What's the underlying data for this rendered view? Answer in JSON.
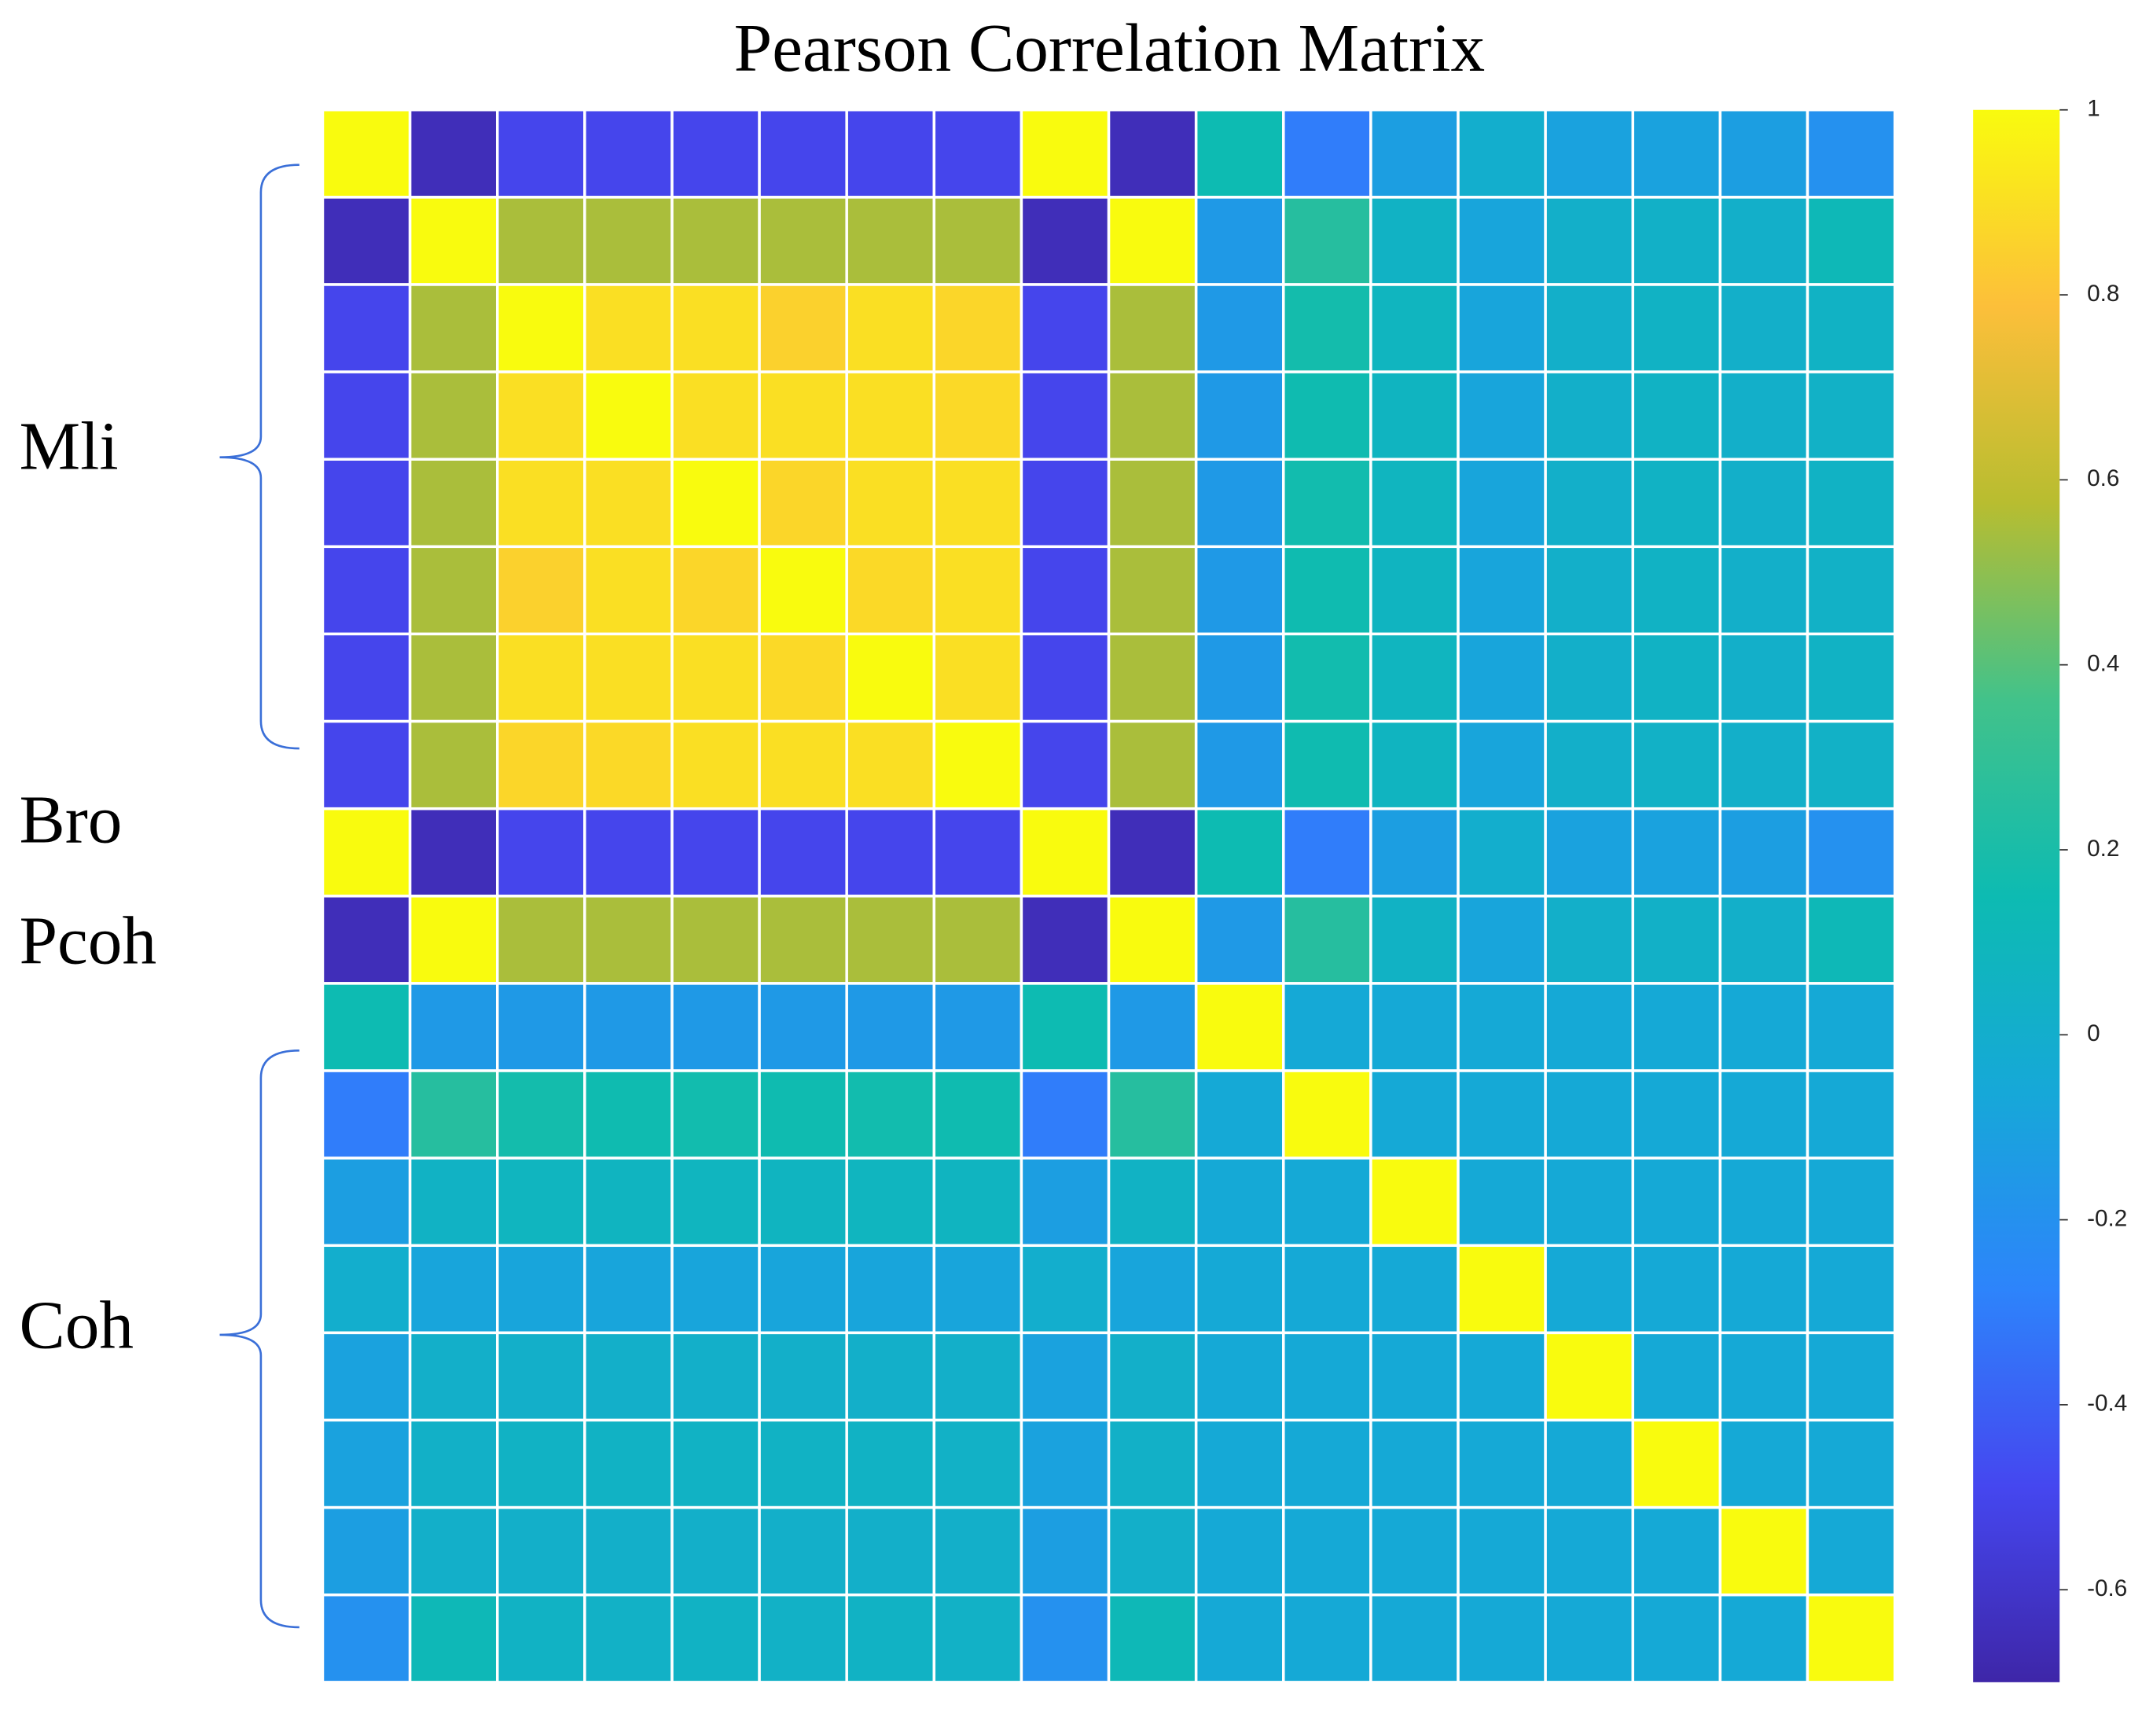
{
  "chart_data": {
    "type": "heatmap",
    "title": "Pearson Correlation Matrix",
    "row_group_labels": [
      "Mli",
      "Bro",
      "Pcoh",
      "Coh"
    ],
    "colormap": "parula",
    "colorbar": {
      "lim": [
        -0.7,
        1
      ],
      "ticks": [
        -0.6,
        -0.4,
        -0.2,
        0,
        0.2,
        0.4,
        0.6,
        0.8,
        1
      ]
    },
    "values": [
      [
        1,
        -0.65,
        -0.5,
        -0.5,
        -0.5,
        -0.5,
        -0.5,
        -0.5,
        1,
        -0.65,
        0.15,
        -0.3,
        -0.12,
        0,
        -0.1,
        -0.1,
        -0.12,
        -0.2
      ],
      [
        -0.65,
        1,
        0.55,
        0.55,
        0.55,
        0.55,
        0.55,
        0.55,
        -0.65,
        1,
        -0.15,
        0.25,
        0.05,
        -0.08,
        0.02,
        0.03,
        0.02,
        0.12
      ],
      [
        -0.5,
        0.55,
        1,
        0.9,
        0.9,
        0.85,
        0.9,
        0.87,
        -0.5,
        0.55,
        -0.15,
        0.18,
        0.08,
        -0.08,
        0.02,
        0.05,
        0.02,
        0.05
      ],
      [
        -0.5,
        0.55,
        0.9,
        1,
        0.9,
        0.9,
        0.9,
        0.88,
        -0.5,
        0.55,
        -0.15,
        0.16,
        0.07,
        -0.08,
        0.02,
        0.05,
        0.02,
        0.04
      ],
      [
        -0.5,
        0.55,
        0.9,
        0.9,
        1,
        0.87,
        0.9,
        0.9,
        -0.5,
        0.55,
        -0.15,
        0.17,
        0.08,
        -0.08,
        0.02,
        0.05,
        0.02,
        0.05
      ],
      [
        -0.5,
        0.55,
        0.85,
        0.9,
        0.87,
        1,
        0.88,
        0.9,
        -0.5,
        0.55,
        -0.15,
        0.16,
        0.07,
        -0.08,
        0.02,
        0.05,
        0.02,
        0.04
      ],
      [
        -0.5,
        0.55,
        0.9,
        0.9,
        0.9,
        0.88,
        1,
        0.9,
        -0.5,
        0.55,
        -0.15,
        0.17,
        0.08,
        -0.08,
        0.02,
        0.05,
        0.02,
        0.05
      ],
      [
        -0.5,
        0.55,
        0.87,
        0.88,
        0.9,
        0.9,
        0.9,
        1,
        -0.5,
        0.55,
        -0.15,
        0.16,
        0.07,
        -0.08,
        0.02,
        0.04,
        0.02,
        0.04
      ],
      [
        1,
        -0.65,
        -0.5,
        -0.5,
        -0.5,
        -0.5,
        -0.5,
        -0.5,
        1,
        -0.65,
        0.15,
        -0.3,
        -0.12,
        0,
        -0.1,
        -0.1,
        -0.12,
        -0.2
      ],
      [
        -0.65,
        1,
        0.55,
        0.55,
        0.55,
        0.55,
        0.55,
        0.55,
        -0.65,
        1,
        -0.15,
        0.25,
        0.05,
        -0.08,
        0.02,
        0.03,
        0.02,
        0.12
      ],
      [
        0.15,
        -0.15,
        -0.15,
        -0.15,
        -0.15,
        -0.15,
        -0.15,
        -0.15,
        0.15,
        -0.15,
        1,
        -0.05,
        -0.05,
        -0.05,
        -0.05,
        -0.05,
        -0.05,
        -0.05
      ],
      [
        -0.3,
        0.25,
        0.18,
        0.16,
        0.17,
        0.16,
        0.17,
        0.16,
        -0.3,
        0.25,
        -0.05,
        1,
        -0.05,
        -0.05,
        -0.05,
        -0.05,
        -0.05,
        -0.05
      ],
      [
        -0.12,
        0.05,
        0.08,
        0.07,
        0.08,
        0.07,
        0.08,
        0.07,
        -0.12,
        0.05,
        -0.05,
        -0.05,
        1,
        -0.05,
        -0.05,
        -0.05,
        -0.05,
        -0.05
      ],
      [
        0,
        -0.08,
        -0.08,
        -0.08,
        -0.08,
        -0.08,
        -0.08,
        -0.08,
        0,
        -0.08,
        -0.05,
        -0.05,
        -0.05,
        1,
        -0.05,
        -0.05,
        -0.05,
        -0.05
      ],
      [
        -0.1,
        0.02,
        0.02,
        0.02,
        0.02,
        0.02,
        0.02,
        0.02,
        -0.1,
        0.02,
        -0.05,
        -0.05,
        -0.05,
        -0.05,
        1,
        -0.05,
        -0.05,
        -0.05
      ],
      [
        -0.1,
        0.03,
        0.05,
        0.05,
        0.05,
        0.05,
        0.05,
        0.04,
        -0.1,
        0.03,
        -0.05,
        -0.05,
        -0.05,
        -0.05,
        -0.05,
        1,
        -0.05,
        -0.05
      ],
      [
        -0.12,
        0.02,
        0.02,
        0.02,
        0.02,
        0.02,
        0.02,
        0.02,
        -0.12,
        0.02,
        -0.05,
        -0.05,
        -0.05,
        -0.05,
        -0.05,
        -0.05,
        1,
        -0.05
      ],
      [
        -0.2,
        0.12,
        0.05,
        0.04,
        0.05,
        0.04,
        0.05,
        0.04,
        -0.2,
        0.12,
        -0.05,
        -0.05,
        -0.05,
        -0.05,
        -0.05,
        -0.05,
        -0.05,
        1
      ]
    ]
  }
}
